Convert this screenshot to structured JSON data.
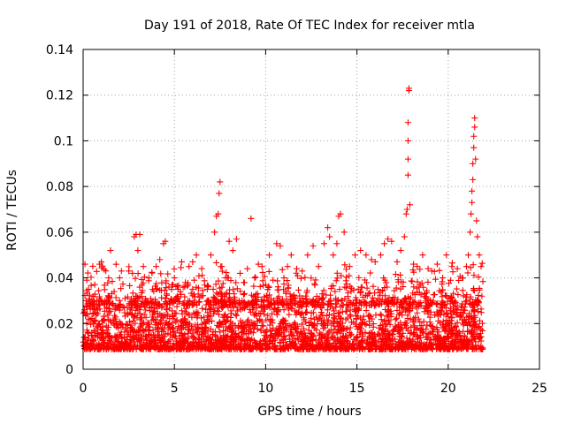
{
  "chart_data": {
    "type": "scatter",
    "title": "Day 191 of 2018, Rate Of TEC Index for receiver mtla",
    "xlabel": "GPS time / hours",
    "ylabel": "ROTI / TECUs",
    "xlim": [
      0,
      25
    ],
    "ylim": [
      0,
      0.14
    ],
    "x_ticks": [
      0,
      5,
      10,
      15,
      20,
      25
    ],
    "x_tick_labels": [
      "0",
      "5",
      "10",
      "15",
      "20",
      "25"
    ],
    "y_ticks": [
      0,
      0.02,
      0.04,
      0.06,
      0.08,
      0.1,
      0.12,
      0.14
    ],
    "y_tick_labels": [
      "0",
      "0.02",
      "0.04",
      "0.06",
      "0.08",
      "0.1",
      "0.12",
      "0.14"
    ],
    "grid": true,
    "marker": "+",
    "series": [
      {
        "name": "ROTI",
        "color": "#ff0000",
        "dense_band": {
          "x_range": [
            0,
            21.9
          ],
          "y_range": [
            0.005,
            0.03
          ]
        },
        "points": [
          [
            0.1,
            0.046
          ],
          [
            0.2,
            0.039
          ],
          [
            0.3,
            0.035
          ],
          [
            0.5,
            0.028
          ],
          [
            0.8,
            0.026
          ],
          [
            0.9,
            0.046
          ],
          [
            1.0,
            0.047
          ],
          [
            1.2,
            0.03
          ],
          [
            1.4,
            0.04
          ],
          [
            1.5,
            0.052
          ],
          [
            1.7,
            0.034
          ],
          [
            2.0,
            0.04
          ],
          [
            2.1,
            0.043
          ],
          [
            2.3,
            0.031
          ],
          [
            2.5,
            0.043
          ],
          [
            2.7,
            0.042
          ],
          [
            2.8,
            0.058
          ],
          [
            2.9,
            0.059
          ],
          [
            3.0,
            0.052
          ],
          [
            3.1,
            0.059
          ],
          [
            3.3,
            0.045
          ],
          [
            3.6,
            0.04
          ],
          [
            3.8,
            0.035
          ],
          [
            4.0,
            0.045
          ],
          [
            4.2,
            0.048
          ],
          [
            4.4,
            0.055
          ],
          [
            4.5,
            0.056
          ],
          [
            4.7,
            0.036
          ],
          [
            5.0,
            0.04
          ],
          [
            5.2,
            0.035
          ],
          [
            5.4,
            0.047
          ],
          [
            5.6,
            0.038
          ],
          [
            5.8,
            0.045
          ],
          [
            6.0,
            0.047
          ],
          [
            6.2,
            0.05
          ],
          [
            6.5,
            0.044
          ],
          [
            6.8,
            0.035
          ],
          [
            7.0,
            0.05
          ],
          [
            7.2,
            0.06
          ],
          [
            7.3,
            0.067
          ],
          [
            7.4,
            0.068
          ],
          [
            7.45,
            0.077
          ],
          [
            7.5,
            0.082
          ],
          [
            7.6,
            0.045
          ],
          [
            7.8,
            0.04
          ],
          [
            8.0,
            0.056
          ],
          [
            8.2,
            0.052
          ],
          [
            8.4,
            0.057
          ],
          [
            8.6,
            0.042
          ],
          [
            8.8,
            0.038
          ],
          [
            9.0,
            0.044
          ],
          [
            9.2,
            0.066
          ],
          [
            9.4,
            0.04
          ],
          [
            9.6,
            0.046
          ],
          [
            9.8,
            0.045
          ],
          [
            10.0,
            0.037
          ],
          [
            10.2,
            0.05
          ],
          [
            10.4,
            0.039
          ],
          [
            10.6,
            0.055
          ],
          [
            10.8,
            0.054
          ],
          [
            11.0,
            0.04
          ],
          [
            11.2,
            0.045
          ],
          [
            11.4,
            0.05
          ],
          [
            11.7,
            0.044
          ],
          [
            12.0,
            0.043
          ],
          [
            12.3,
            0.05
          ],
          [
            12.6,
            0.054
          ],
          [
            12.9,
            0.045
          ],
          [
            13.2,
            0.055
          ],
          [
            13.4,
            0.062
          ],
          [
            13.5,
            0.058
          ],
          [
            13.7,
            0.05
          ],
          [
            13.9,
            0.055
          ],
          [
            14.0,
            0.067
          ],
          [
            14.1,
            0.068
          ],
          [
            14.3,
            0.06
          ],
          [
            14.6,
            0.045
          ],
          [
            14.9,
            0.05
          ],
          [
            15.2,
            0.052
          ],
          [
            15.5,
            0.05
          ],
          [
            15.8,
            0.048
          ],
          [
            16.0,
            0.047
          ],
          [
            16.3,
            0.05
          ],
          [
            16.5,
            0.055
          ],
          [
            16.7,
            0.057
          ],
          [
            16.9,
            0.056
          ],
          [
            17.2,
            0.047
          ],
          [
            17.4,
            0.052
          ],
          [
            17.6,
            0.058
          ],
          [
            17.7,
            0.068
          ],
          [
            17.75,
            0.07
          ],
          [
            17.8,
            0.085
          ],
          [
            17.8,
            0.092
          ],
          [
            17.8,
            0.1
          ],
          [
            17.8,
            0.108
          ],
          [
            17.85,
            0.122
          ],
          [
            17.85,
            0.123
          ],
          [
            17.9,
            0.072
          ],
          [
            18.1,
            0.046
          ],
          [
            18.3,
            0.045
          ],
          [
            18.6,
            0.05
          ],
          [
            18.9,
            0.044
          ],
          [
            19.1,
            0.043
          ],
          [
            19.4,
            0.046
          ],
          [
            19.7,
            0.04
          ],
          [
            19.9,
            0.05
          ],
          [
            20.2,
            0.045
          ],
          [
            20.5,
            0.044
          ],
          [
            20.8,
            0.04
          ],
          [
            21.0,
            0.045
          ],
          [
            21.1,
            0.05
          ],
          [
            21.2,
            0.06
          ],
          [
            21.25,
            0.068
          ],
          [
            21.3,
            0.073
          ],
          [
            21.3,
            0.078
          ],
          [
            21.35,
            0.083
          ],
          [
            21.35,
            0.09
          ],
          [
            21.4,
            0.097
          ],
          [
            21.4,
            0.102
          ],
          [
            21.45,
            0.106
          ],
          [
            21.45,
            0.11
          ],
          [
            21.5,
            0.092
          ],
          [
            21.55,
            0.065
          ],
          [
            21.6,
            0.058
          ],
          [
            21.7,
            0.05
          ],
          [
            21.8,
            0.045
          ]
        ]
      }
    ]
  }
}
